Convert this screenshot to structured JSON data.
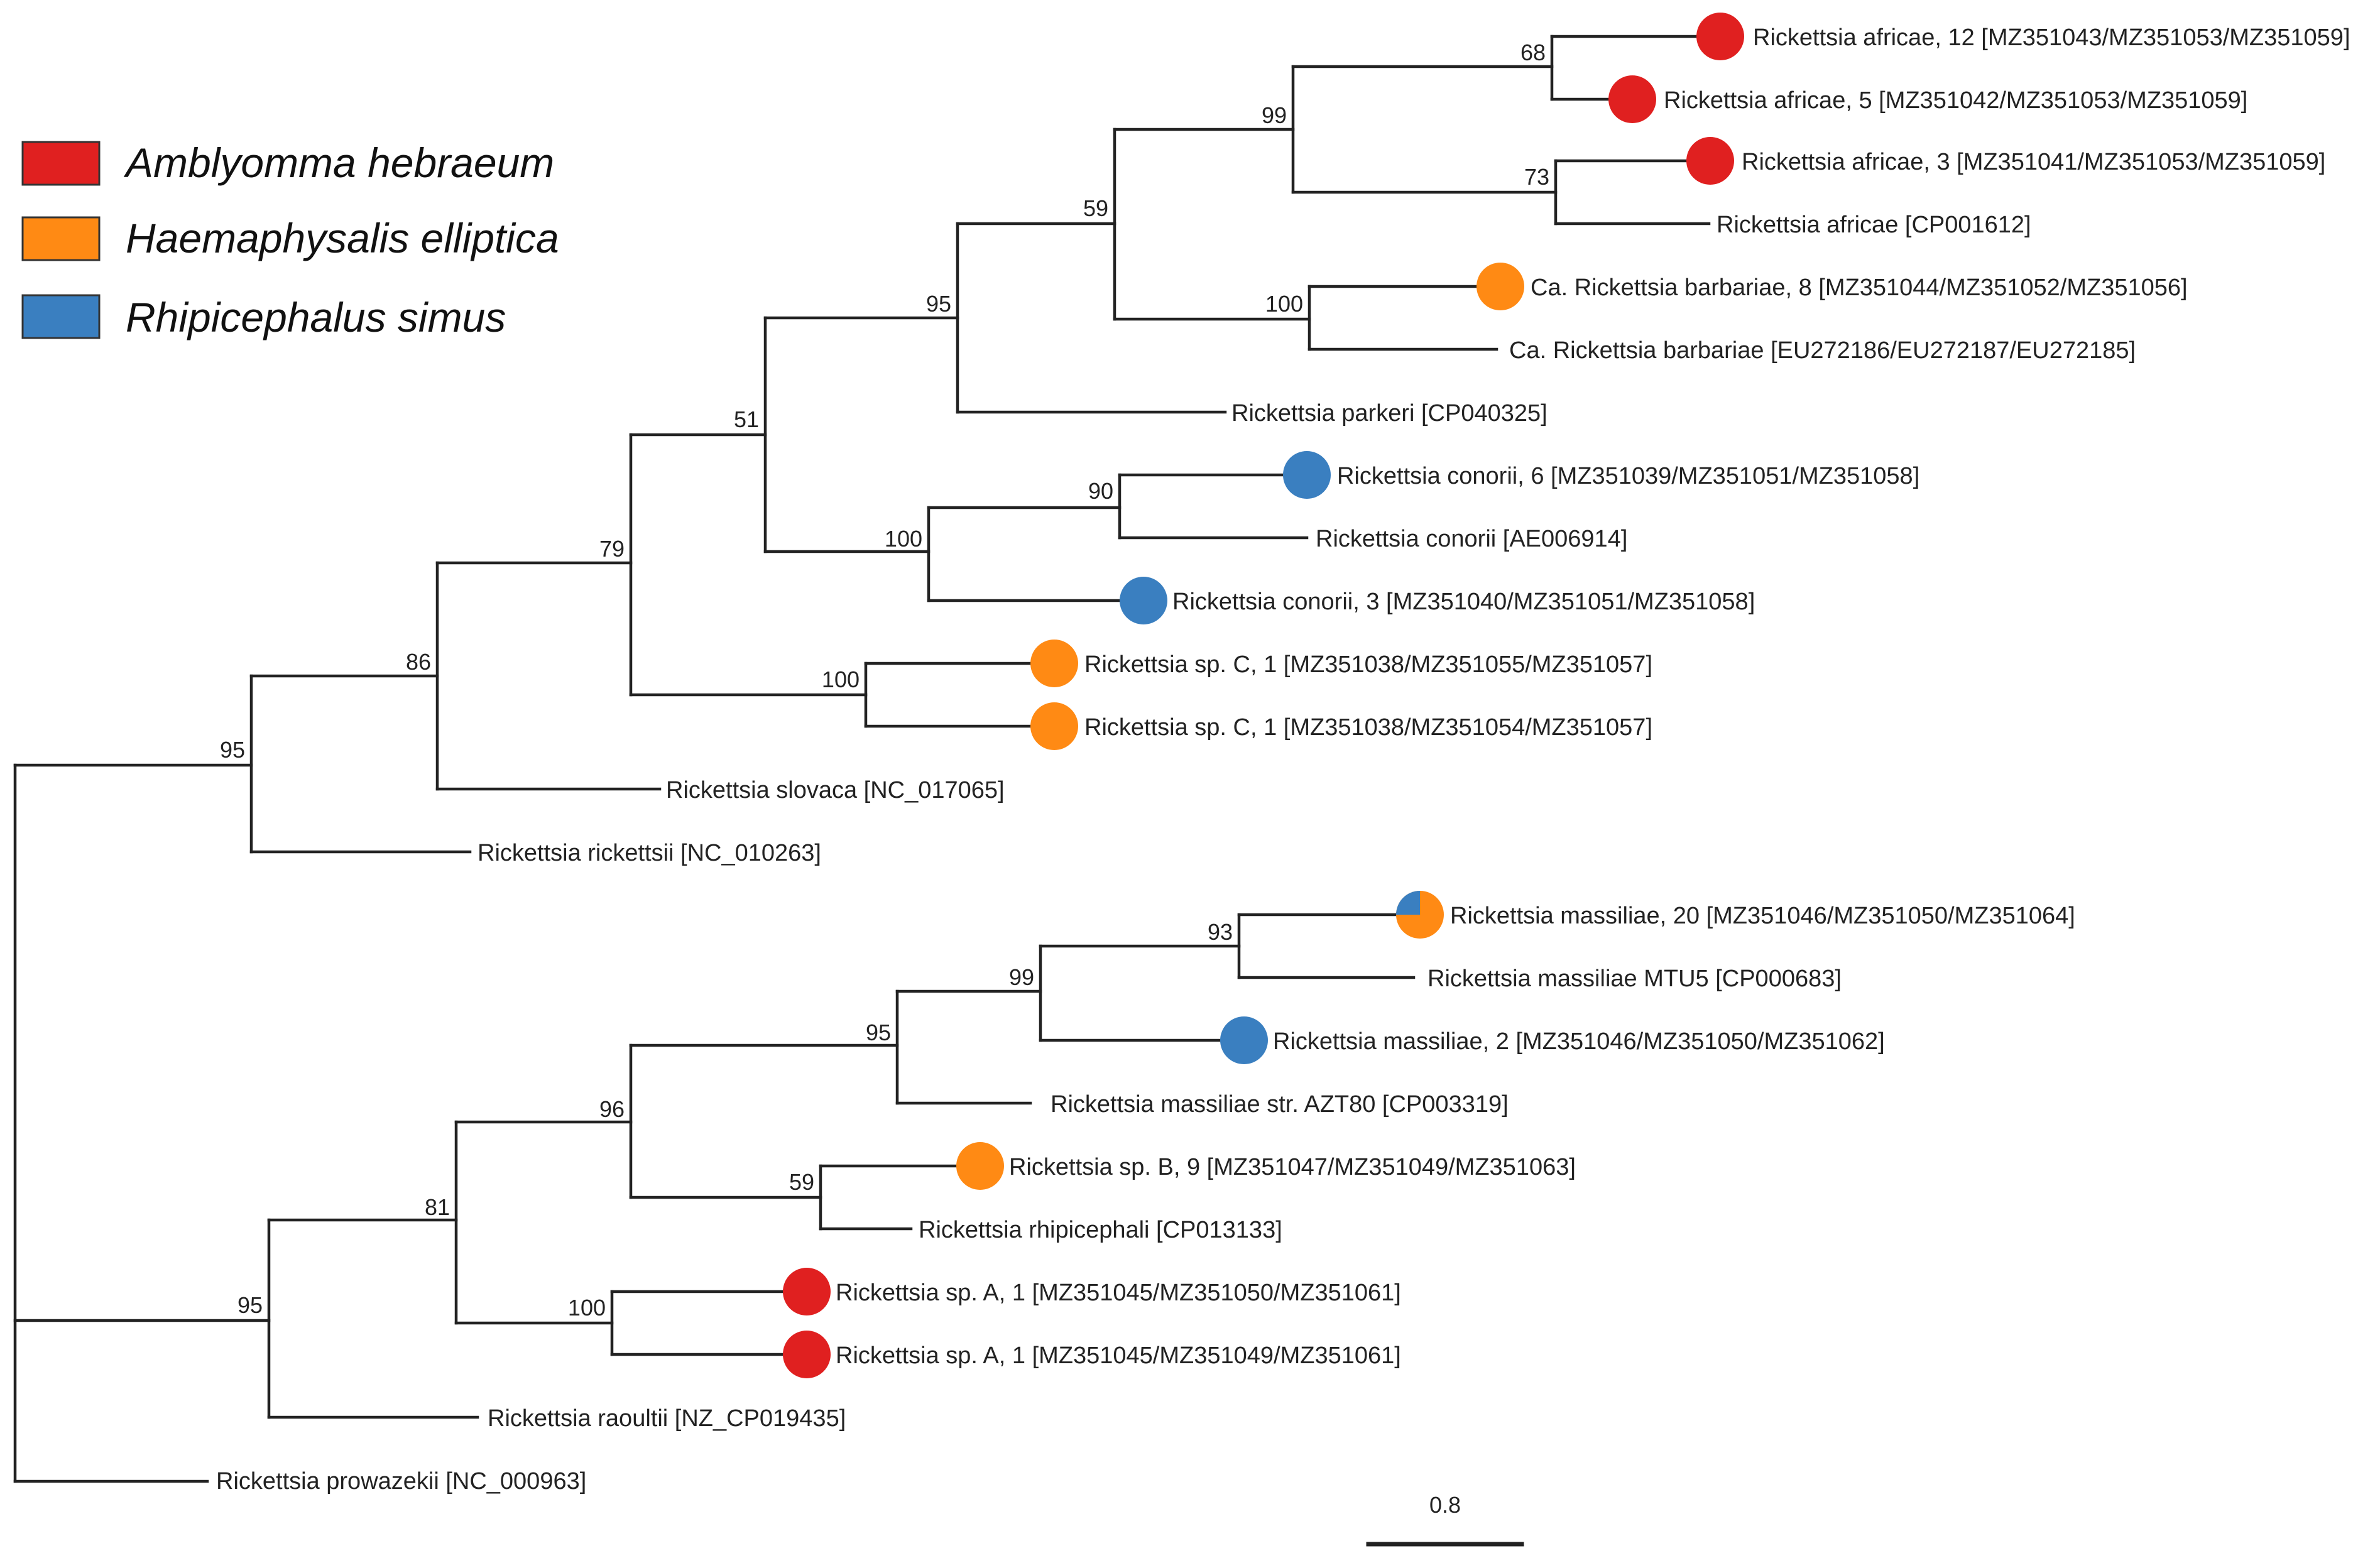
{
  "legend": {
    "items": [
      {
        "label": "Amblyomma hebraeum",
        "color": "#e02020"
      },
      {
        "label": "Haemaphysalis elliptica",
        "color": "#ff8a14"
      },
      {
        "label": "Rhipicephalus simus",
        "color": "#3a7fc0"
      }
    ]
  },
  "tips": [
    {
      "id": "t1",
      "label": "Rickettsia africae, 12 [MZ351043/MZ351053/MZ351059]",
      "host": "Amblyomma hebraeum"
    },
    {
      "id": "t2",
      "label": "Rickettsia africae, 5 [MZ351042/MZ351053/MZ351059]",
      "host": "Amblyomma hebraeum"
    },
    {
      "id": "t3",
      "label": "Rickettsia africae, 3 [MZ351041/MZ351053/MZ351059]",
      "host": "Amblyomma hebraeum"
    },
    {
      "id": "t4",
      "label": "Rickettsia africae [CP001612]",
      "host": null
    },
    {
      "id": "t5",
      "label": "Ca. Rickettsia barbariae, 8 [MZ351044/MZ351052/MZ351056]",
      "host": "Haemaphysalis elliptica"
    },
    {
      "id": "t6",
      "label": "Ca. Rickettsia barbariae [EU272186/EU272187/EU272185]",
      "host": null
    },
    {
      "id": "t7",
      "label": "Rickettsia parkeri [CP040325]",
      "host": null
    },
    {
      "id": "t8",
      "label": "Rickettsia conorii, 6 [MZ351039/MZ351051/MZ351058]",
      "host": "Rhipicephalus simus"
    },
    {
      "id": "t9",
      "label": "Rickettsia conorii [AE006914]",
      "host": null
    },
    {
      "id": "t10",
      "label": "Rickettsia conorii, 3 [MZ351040/MZ351051/MZ351058]",
      "host": "Rhipicephalus simus"
    },
    {
      "id": "t11",
      "label": "Rickettsia sp. C, 1 [MZ351038/MZ351055/MZ351057]",
      "host": "Haemaphysalis elliptica"
    },
    {
      "id": "t12",
      "label": "Rickettsia sp. C, 1 [MZ351038/MZ351054/MZ351057]",
      "host": "Haemaphysalis elliptica"
    },
    {
      "id": "t13",
      "label": "Rickettsia slovaca [NC_017065]",
      "host": null
    },
    {
      "id": "t14",
      "label": "Rickettsia rickettsii [NC_010263]",
      "host": null
    },
    {
      "id": "t15",
      "label": "Rickettsia massiliae, 20 [MZ351046/MZ351050/MZ351064]",
      "host": "mixed",
      "pie": [
        {
          "host": "Haemaphysalis elliptica",
          "fraction": 0.75
        },
        {
          "host": "Rhipicephalus simus",
          "fraction": 0.25
        }
      ]
    },
    {
      "id": "t16",
      "label": "Rickettsia massiliae MTU5 [CP000683]",
      "host": null
    },
    {
      "id": "t17",
      "label": "Rickettsia massiliae, 2 [MZ351046/MZ351050/MZ351062]",
      "host": "Rhipicephalus simus"
    },
    {
      "id": "t18",
      "label": "Rickettsia massiliae str. AZT80 [CP003319]",
      "host": null
    },
    {
      "id": "t19",
      "label": "Rickettsia sp. B, 9 [MZ351047/MZ351049/MZ351063]",
      "host": "Haemaphysalis elliptica"
    },
    {
      "id": "t20",
      "label": "Rickettsia rhipicephali [CP013133]",
      "host": null
    },
    {
      "id": "t21",
      "label": "Rickettsia sp. A, 1 [MZ351045/MZ351050/MZ351061]",
      "host": "Amblyomma hebraeum"
    },
    {
      "id": "t22",
      "label": "Rickettsia sp. A, 1 [MZ351045/MZ351049/MZ351061]",
      "host": "Amblyomma hebraeum"
    },
    {
      "id": "t23",
      "label": "Rickettsia raoultii [NZ_CP019435]",
      "host": null
    },
    {
      "id": "t24",
      "label": "Rickettsia prowazekii [NC_000963]",
      "host": null
    }
  ],
  "bootstrap": [
    {
      "node": "n_af12_5",
      "value": "68"
    },
    {
      "node": "n_af3_cp",
      "value": "73"
    },
    {
      "node": "n_africae",
      "value": "99"
    },
    {
      "node": "n_barb",
      "value": "100"
    },
    {
      "node": "n_afbarb",
      "value": "59"
    },
    {
      "node": "n_parkeri",
      "value": "95"
    },
    {
      "node": "n_con6",
      "value": "90"
    },
    {
      "node": "n_conorii",
      "value": "100"
    },
    {
      "node": "n_upper51",
      "value": "51"
    },
    {
      "node": "n_spC",
      "value": "100"
    },
    {
      "node": "n_79",
      "value": "79"
    },
    {
      "node": "n_86",
      "value": "86"
    },
    {
      "node": "n_95top",
      "value": "95"
    },
    {
      "node": "n_mass93",
      "value": "93"
    },
    {
      "node": "n_mass99",
      "value": "99"
    },
    {
      "node": "n_mass95",
      "value": "95"
    },
    {
      "node": "n_spB",
      "value": "59"
    },
    {
      "node": "n_96",
      "value": "96"
    },
    {
      "node": "n_spA",
      "value": "100"
    },
    {
      "node": "n_81",
      "value": "81"
    },
    {
      "node": "n_95bot",
      "value": "95"
    }
  ],
  "scale_bar": {
    "label": "0.8"
  }
}
